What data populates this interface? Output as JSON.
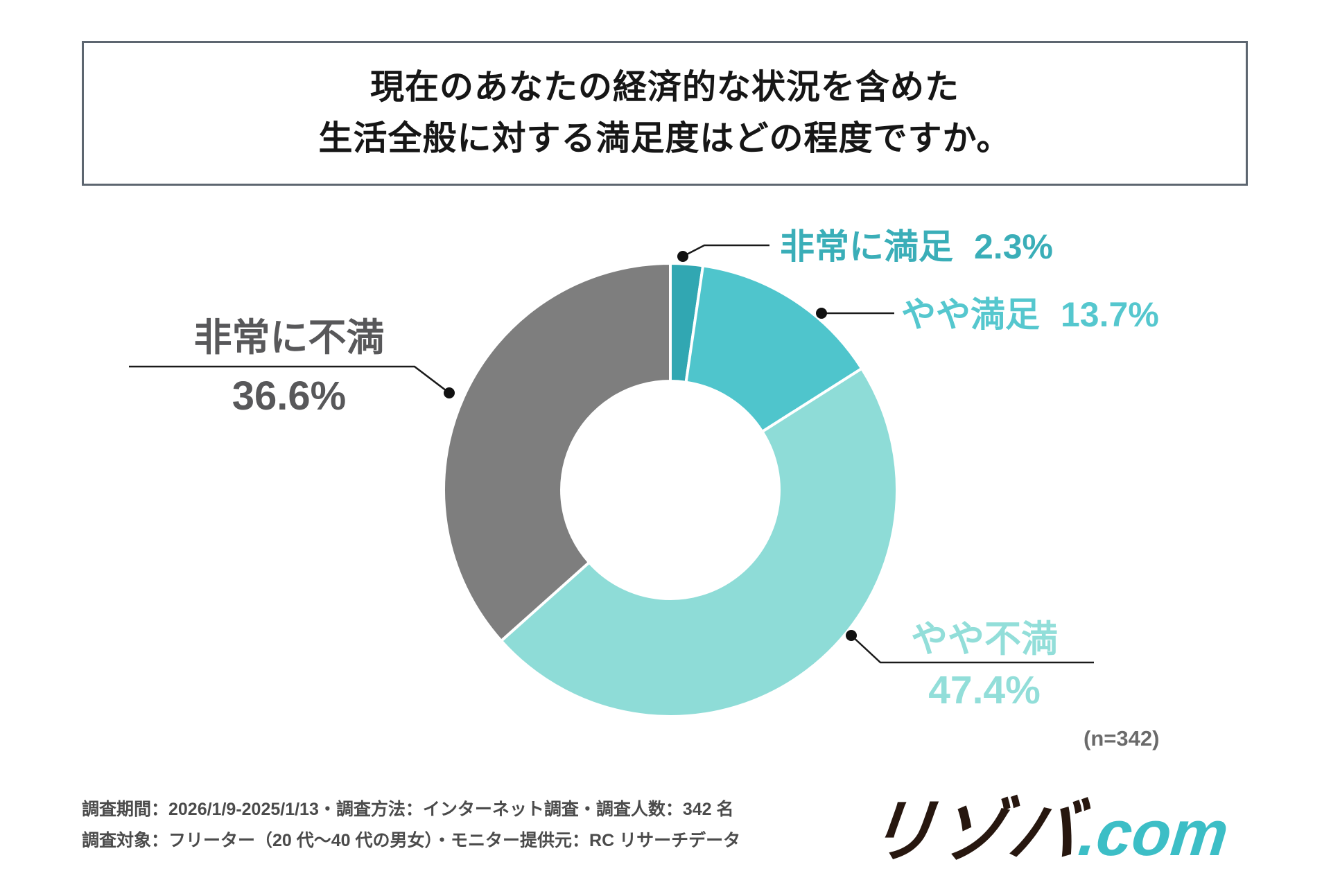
{
  "title": {
    "line1": "現在のあなたの経済的な状況を含めた",
    "line2": "生活全般に対する満足度はどの程度ですか。"
  },
  "chart_data": {
    "type": "pie",
    "subtype": "donut",
    "question": "現在のあなたの経済的な状況を含めた生活全般に対する満足度はどの程度ですか。",
    "n": 342,
    "n_label": "(n=342)",
    "direction": "clockwise",
    "start_angle_deg": 0,
    "inner_radius_ratio": 0.48,
    "segments": [
      {
        "key": "very-satisfied",
        "label": "非常に満足",
        "value": 2.3,
        "display": "2.3%",
        "color": "#31A7B2",
        "label_color": "#3AAEB8"
      },
      {
        "key": "somewhat-satisfied",
        "label": "やや満足",
        "value": 13.7,
        "display": "13.7%",
        "color": "#4FC5CC",
        "label_color": "#55C7CE"
      },
      {
        "key": "somewhat-dissatisfied",
        "label": "やや不満",
        "value": 47.4,
        "display": "47.4%",
        "color": "#8EDCD7",
        "label_color": "#92DED9"
      },
      {
        "key": "very-dissatisfied",
        "label": "非常に不満",
        "value": 36.6,
        "display": "36.6%",
        "color": "#7E7E7E",
        "label_color": "#58585A"
      }
    ]
  },
  "footer": {
    "line1": "調査期間：2026/1/9-2025/1/13・調査方法：インターネット調査・調査人数：342 名",
    "line2": "調査対象：フリーター（20 代〜40 代の男女）・モニター提供元：RC リサーチデータ"
  },
  "logo": {
    "name": "リゾバ",
    "suffix": ".com",
    "name_color": "#27170F",
    "suffix_color": "#3CBEC6"
  }
}
